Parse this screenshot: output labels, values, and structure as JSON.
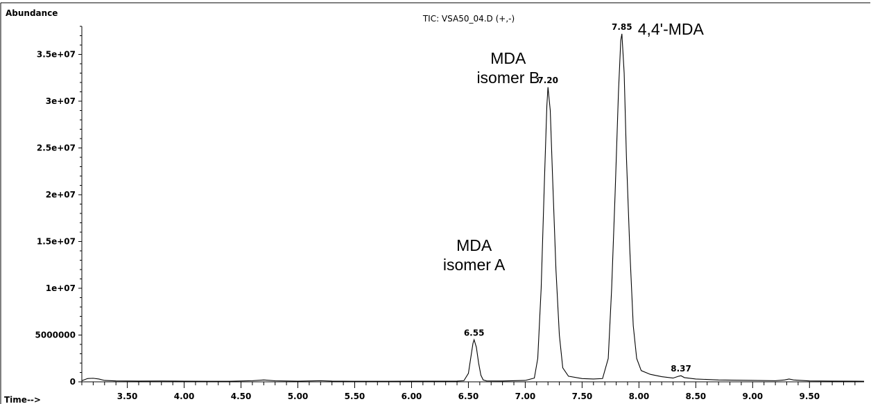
{
  "chart_data": {
    "type": "line",
    "title": "TIC: VSA50_04.D (+,-)",
    "ylabel": "Abundance",
    "xlabel": "Time-->",
    "xlim": [
      3.1,
      9.98
    ],
    "ylim": [
      0,
      38000000
    ],
    "x_ticks": [
      3.5,
      4.0,
      4.5,
      5.0,
      5.5,
      6.0,
      6.5,
      7.0,
      7.5,
      8.0,
      8.5,
      9.0,
      9.5
    ],
    "x_tick_labels": [
      "3.50",
      "4.00",
      "4.50",
      "5.00",
      "5.50",
      "6.00",
      "6.50",
      "7.00",
      "7.50",
      "8.00",
      "8.50",
      "9.00",
      "9.50"
    ],
    "y_ticks": [
      0,
      5000000,
      10000000,
      15000000,
      20000000,
      25000000,
      30000000,
      35000000
    ],
    "y_tick_labels": [
      "0",
      "5000000",
      "1e+07",
      "1.5e+07",
      "2e+07",
      "2.5e+07",
      "3e+07",
      "3.5e+07"
    ],
    "series": [
      {
        "color": "#000000",
        "points": [
          [
            3.1,
            120000
          ],
          [
            3.15,
            350000
          ],
          [
            3.2,
            380000
          ],
          [
            3.25,
            300000
          ],
          [
            3.3,
            150000
          ],
          [
            3.4,
            100000
          ],
          [
            3.6,
            80000
          ],
          [
            3.8,
            90000
          ],
          [
            4.0,
            70000
          ],
          [
            4.2,
            60000
          ],
          [
            4.4,
            60000
          ],
          [
            4.6,
            120000
          ],
          [
            4.7,
            200000
          ],
          [
            4.8,
            110000
          ],
          [
            5.0,
            70000
          ],
          [
            5.2,
            120000
          ],
          [
            5.3,
            80000
          ],
          [
            5.5,
            60000
          ],
          [
            5.8,
            60000
          ],
          [
            6.0,
            70000
          ],
          [
            6.2,
            70000
          ],
          [
            6.4,
            80000
          ],
          [
            6.46,
            120000
          ],
          [
            6.5,
            900000
          ],
          [
            6.52,
            2500000
          ],
          [
            6.54,
            4100000
          ],
          [
            6.55,
            4500000
          ],
          [
            6.57,
            3700000
          ],
          [
            6.59,
            2000000
          ],
          [
            6.61,
            700000
          ],
          [
            6.63,
            200000
          ],
          [
            6.66,
            100000
          ],
          [
            6.8,
            90000
          ],
          [
            7.0,
            150000
          ],
          [
            7.08,
            400000
          ],
          [
            7.11,
            2500000
          ],
          [
            7.14,
            10000000
          ],
          [
            7.17,
            22000000
          ],
          [
            7.19,
            29500000
          ],
          [
            7.2,
            31500000
          ],
          [
            7.22,
            29000000
          ],
          [
            7.24,
            22000000
          ],
          [
            7.27,
            12000000
          ],
          [
            7.3,
            5000000
          ],
          [
            7.33,
            1500000
          ],
          [
            7.38,
            600000
          ],
          [
            7.5,
            350000
          ],
          [
            7.6,
            300000
          ],
          [
            7.68,
            350000
          ],
          [
            7.73,
            2500000
          ],
          [
            7.76,
            10000000
          ],
          [
            7.79,
            20000000
          ],
          [
            7.82,
            31000000
          ],
          [
            7.84,
            36500000
          ],
          [
            7.85,
            37200000
          ],
          [
            7.87,
            33000000
          ],
          [
            7.89,
            24000000
          ],
          [
            7.92,
            14000000
          ],
          [
            7.95,
            6000000
          ],
          [
            7.98,
            2500000
          ],
          [
            8.02,
            1200000
          ],
          [
            8.1,
            800000
          ],
          [
            8.2,
            550000
          ],
          [
            8.3,
            400000
          ],
          [
            8.35,
            600000
          ],
          [
            8.37,
            650000
          ],
          [
            8.4,
            450000
          ],
          [
            8.5,
            300000
          ],
          [
            8.7,
            200000
          ],
          [
            9.0,
            150000
          ],
          [
            9.2,
            120000
          ],
          [
            9.28,
            200000
          ],
          [
            9.32,
            300000
          ],
          [
            9.36,
            200000
          ],
          [
            9.5,
            100000
          ],
          [
            9.7,
            80000
          ],
          [
            9.9,
            70000
          ],
          [
            9.98,
            60000
          ]
        ]
      }
    ],
    "peak_labels": [
      {
        "x": 6.55,
        "y": 4500000,
        "text": "6.55"
      },
      {
        "x": 7.2,
        "y": 31500000,
        "text": "7.20"
      },
      {
        "x": 7.85,
        "y": 37200000,
        "text": "7.85"
      },
      {
        "x": 8.37,
        "y": 650000,
        "text": "8.37"
      }
    ],
    "annotations": [
      {
        "x": 6.55,
        "y": 14000000,
        "lines": [
          "MDA",
          "isomer A"
        ],
        "anchor": "middle"
      },
      {
        "x": 6.85,
        "y": 34000000,
        "lines": [
          "MDA",
          "isomer B"
        ],
        "anchor": "middle"
      },
      {
        "x": 8.28,
        "y": 37100000,
        "lines": [
          "4,4'-MDA"
        ],
        "anchor": "middle"
      }
    ]
  }
}
